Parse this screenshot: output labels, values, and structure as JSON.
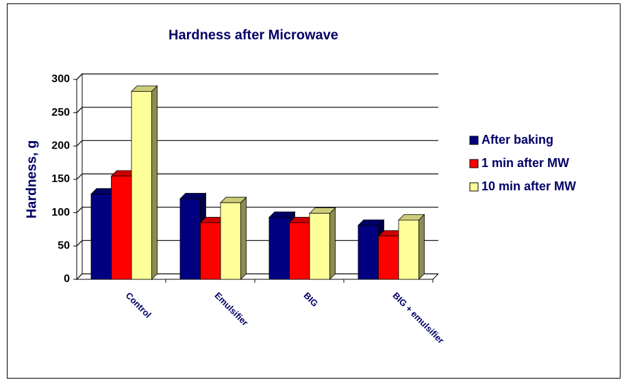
{
  "chart_data": {
    "type": "bar3d",
    "title": "Hardness after Microwave",
    "y_label": "Hardness, g",
    "categories": [
      "Control",
      "Emulsifier",
      "BIG",
      "BIG + emulsifier"
    ],
    "series": [
      {
        "name": "After baking",
        "color": "#000080",
        "values": [
          128,
          121,
          93,
          81
        ]
      },
      {
        "name": "1 min after MW",
        "color": "#ff0000",
        "values": [
          155,
          85,
          85,
          65
        ]
      },
      {
        "name": "10 min after MW",
        "color": "#ffff99",
        "values": [
          282,
          115,
          99,
          89
        ]
      }
    ],
    "ylim": [
      0,
      300
    ],
    "yticks": [
      0,
      50,
      100,
      150,
      200,
      250,
      300
    ],
    "grid": true,
    "legend": "right"
  }
}
